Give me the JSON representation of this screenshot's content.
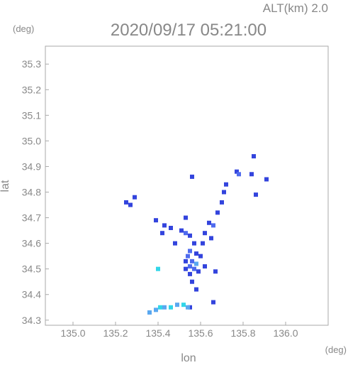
{
  "header": {
    "altitude_label": "ALT(km) 2.0",
    "timestamp": "2020/09/17 05:21:00",
    "unit_top_left": "(deg)",
    "unit_bottom_right": "(deg)"
  },
  "chart_data": {
    "type": "heatmap",
    "xlabel": "lon",
    "ylabel": "lat",
    "xlim": [
      134.87,
      136.2
    ],
    "ylim": [
      34.28,
      35.37
    ],
    "x_ticks": [
      "135.0",
      "135.2",
      "135.4",
      "135.6",
      "135.8",
      "136.0"
    ],
    "y_ticks": [
      "34.3",
      "34.4",
      "34.5",
      "34.6",
      "34.7",
      "34.8",
      "34.9",
      "35.0",
      "35.1",
      "35.2",
      "35.3"
    ],
    "grid": false,
    "colors": {
      "dark_blue": "#3344dd",
      "mid_blue": "#4f6bee",
      "light_blue": "#5aa8f0",
      "cyan": "#31d6e8"
    },
    "echo_cells": [
      {
        "lon": 135.85,
        "lat": 34.94,
        "color": "dark_blue"
      },
      {
        "lon": 135.77,
        "lat": 34.88,
        "color": "dark_blue"
      },
      {
        "lon": 135.78,
        "lat": 34.87,
        "color": "mid_blue"
      },
      {
        "lon": 135.84,
        "lat": 34.87,
        "color": "dark_blue"
      },
      {
        "lon": 135.91,
        "lat": 34.85,
        "color": "dark_blue"
      },
      {
        "lon": 135.72,
        "lat": 34.83,
        "color": "dark_blue"
      },
      {
        "lon": 135.71,
        "lat": 34.8,
        "color": "dark_blue"
      },
      {
        "lon": 135.86,
        "lat": 34.79,
        "color": "dark_blue"
      },
      {
        "lon": 135.7,
        "lat": 34.76,
        "color": "dark_blue"
      },
      {
        "lon": 135.68,
        "lat": 34.72,
        "color": "dark_blue"
      },
      {
        "lon": 135.29,
        "lat": 34.78,
        "color": "dark_blue"
      },
      {
        "lon": 135.25,
        "lat": 34.76,
        "color": "dark_blue"
      },
      {
        "lon": 135.27,
        "lat": 34.75,
        "color": "dark_blue"
      },
      {
        "lon": 135.56,
        "lat": 34.86,
        "color": "dark_blue"
      },
      {
        "lon": 135.53,
        "lat": 34.7,
        "color": "dark_blue"
      },
      {
        "lon": 135.39,
        "lat": 34.69,
        "color": "dark_blue"
      },
      {
        "lon": 135.43,
        "lat": 34.67,
        "color": "dark_blue"
      },
      {
        "lon": 135.46,
        "lat": 34.66,
        "color": "dark_blue"
      },
      {
        "lon": 135.42,
        "lat": 34.64,
        "color": "dark_blue"
      },
      {
        "lon": 135.51,
        "lat": 34.65,
        "color": "dark_blue"
      },
      {
        "lon": 135.53,
        "lat": 34.64,
        "color": "mid_blue"
      },
      {
        "lon": 135.55,
        "lat": 34.63,
        "color": "dark_blue"
      },
      {
        "lon": 135.64,
        "lat": 34.68,
        "color": "dark_blue"
      },
      {
        "lon": 135.66,
        "lat": 34.67,
        "color": "mid_blue"
      },
      {
        "lon": 135.62,
        "lat": 34.64,
        "color": "dark_blue"
      },
      {
        "lon": 135.65,
        "lat": 34.62,
        "color": "dark_blue"
      },
      {
        "lon": 135.61,
        "lat": 34.6,
        "color": "dark_blue"
      },
      {
        "lon": 135.48,
        "lat": 34.6,
        "color": "dark_blue"
      },
      {
        "lon": 135.57,
        "lat": 34.6,
        "color": "dark_blue"
      },
      {
        "lon": 135.55,
        "lat": 34.57,
        "color": "mid_blue"
      },
      {
        "lon": 135.58,
        "lat": 34.56,
        "color": "dark_blue"
      },
      {
        "lon": 135.54,
        "lat": 34.55,
        "color": "mid_blue"
      },
      {
        "lon": 135.53,
        "lat": 34.53,
        "color": "dark_blue"
      },
      {
        "lon": 135.56,
        "lat": 34.53,
        "color": "mid_blue"
      },
      {
        "lon": 135.58,
        "lat": 34.52,
        "color": "light_blue"
      },
      {
        "lon": 135.55,
        "lat": 34.51,
        "color": "mid_blue"
      },
      {
        "lon": 135.57,
        "lat": 34.5,
        "color": "mid_blue"
      },
      {
        "lon": 135.53,
        "lat": 34.5,
        "color": "dark_blue"
      },
      {
        "lon": 135.59,
        "lat": 34.49,
        "color": "dark_blue"
      },
      {
        "lon": 135.55,
        "lat": 34.48,
        "color": "dark_blue"
      },
      {
        "lon": 135.62,
        "lat": 34.51,
        "color": "dark_blue"
      },
      {
        "lon": 135.6,
        "lat": 34.55,
        "color": "dark_blue"
      },
      {
        "lon": 135.67,
        "lat": 34.49,
        "color": "dark_blue"
      },
      {
        "lon": 135.4,
        "lat": 34.5,
        "color": "cyan"
      },
      {
        "lon": 135.56,
        "lat": 34.45,
        "color": "dark_blue"
      },
      {
        "lon": 135.58,
        "lat": 34.42,
        "color": "dark_blue"
      },
      {
        "lon": 135.66,
        "lat": 34.37,
        "color": "dark_blue"
      },
      {
        "lon": 135.55,
        "lat": 34.35,
        "color": "dark_blue"
      },
      {
        "lon": 135.36,
        "lat": 34.33,
        "color": "light_blue"
      },
      {
        "lon": 135.39,
        "lat": 34.34,
        "color": "light_blue"
      },
      {
        "lon": 135.41,
        "lat": 34.35,
        "color": "cyan"
      },
      {
        "lon": 135.43,
        "lat": 34.35,
        "color": "light_blue"
      },
      {
        "lon": 135.46,
        "lat": 34.35,
        "color": "cyan"
      },
      {
        "lon": 135.49,
        "lat": 34.36,
        "color": "light_blue"
      },
      {
        "lon": 135.52,
        "lat": 34.36,
        "color": "cyan"
      },
      {
        "lon": 135.54,
        "lat": 34.35,
        "color": "light_blue"
      }
    ]
  }
}
